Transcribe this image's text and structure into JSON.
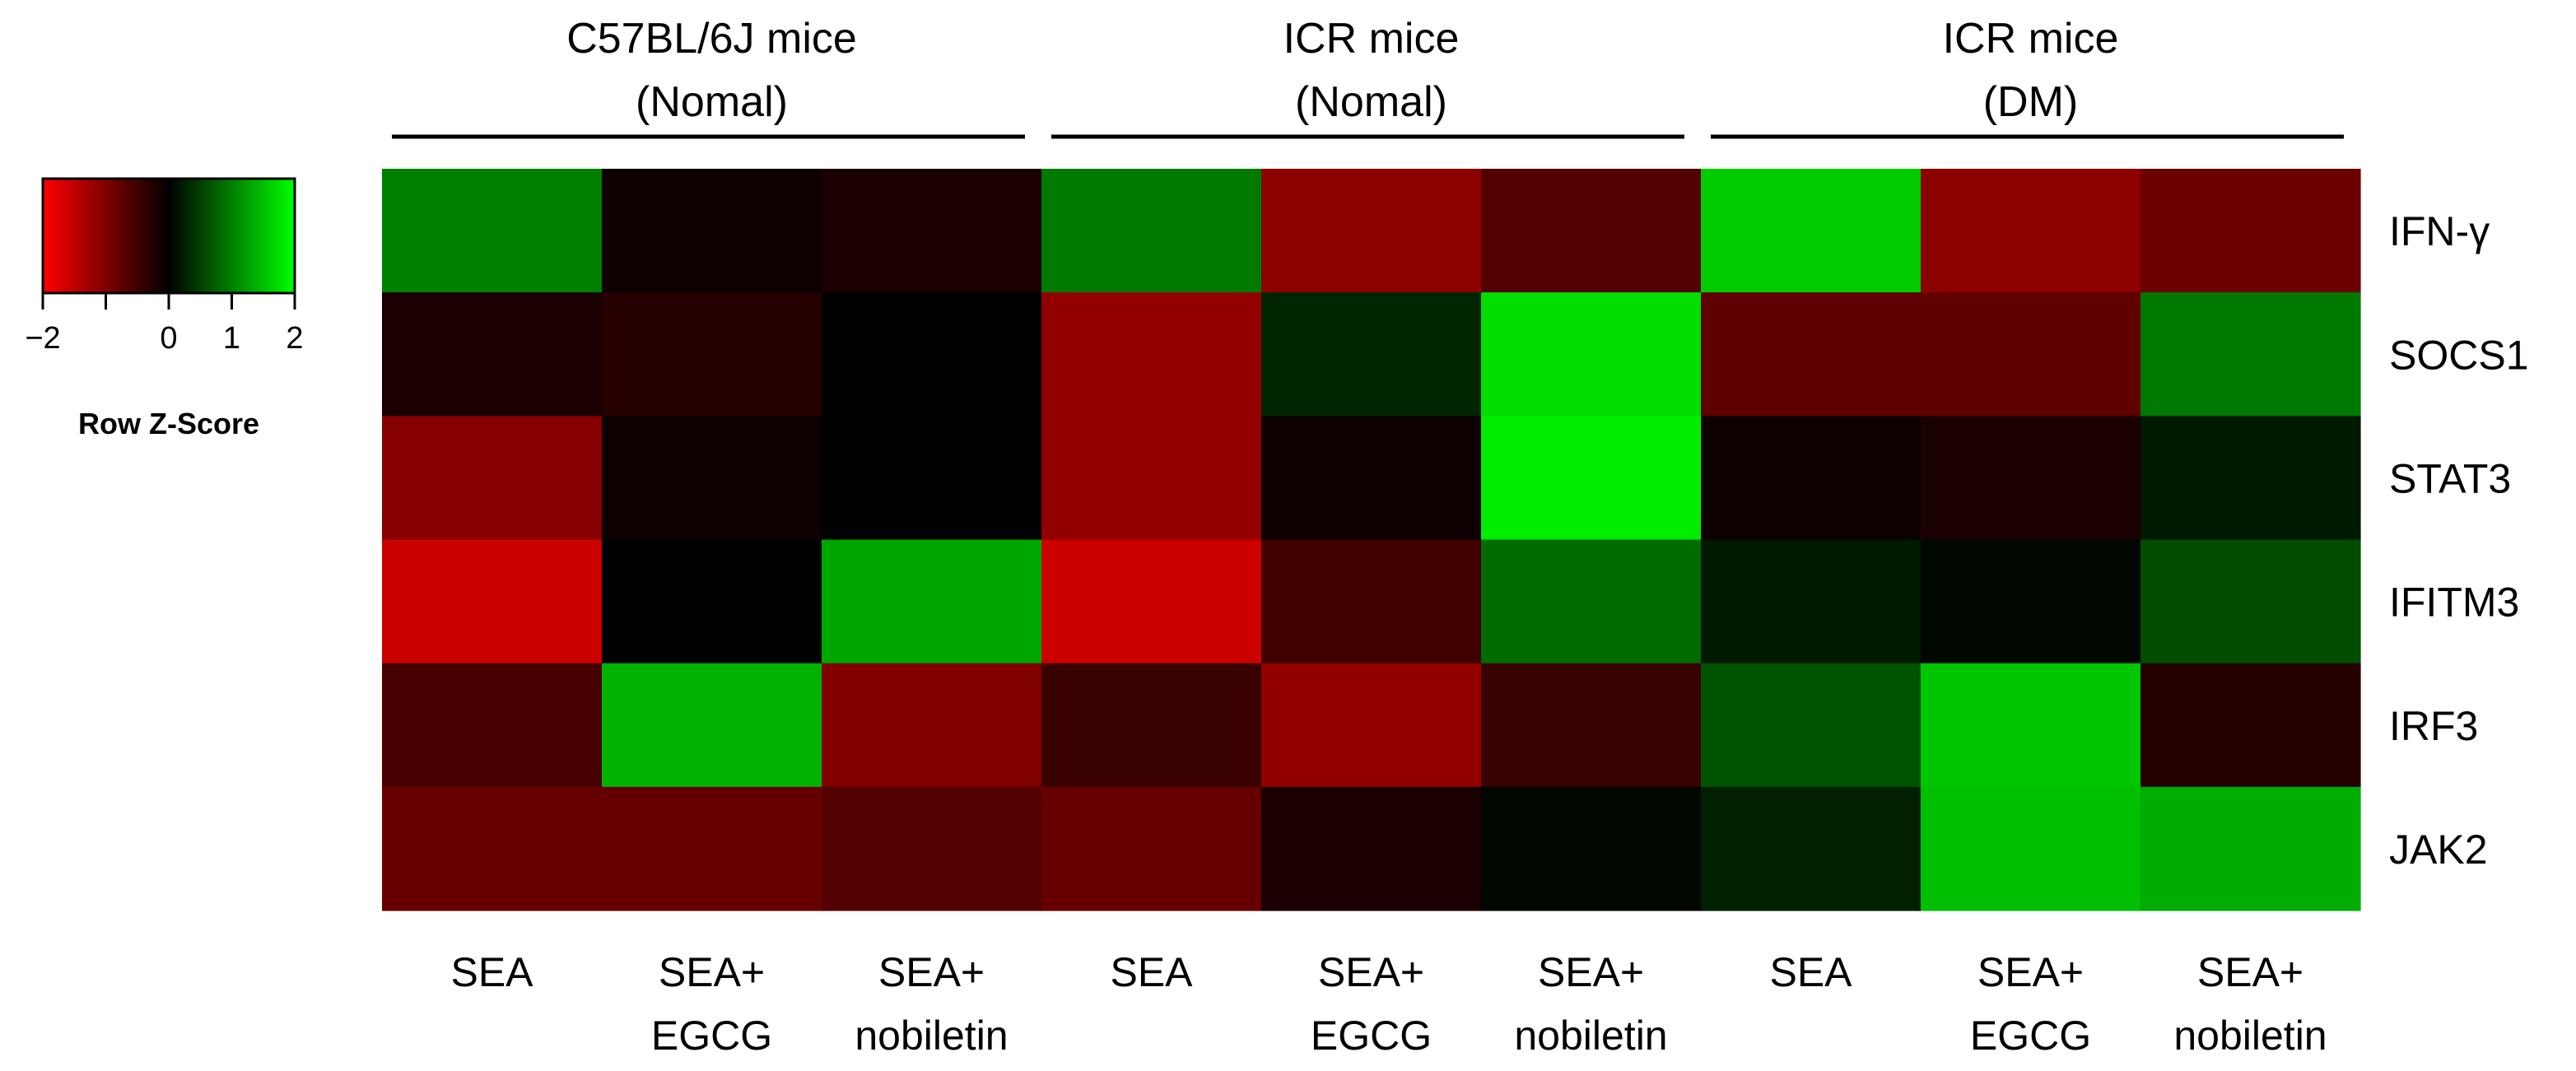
{
  "chart_data": {
    "type": "heatmap",
    "title": "",
    "groups": [
      {
        "line1": "C57BL/6J mice",
        "line2": "(Nomal)"
      },
      {
        "line1": "ICR mice",
        "line2": "(Nomal)"
      },
      {
        "line1": "ICR mice",
        "line2": "(DM)"
      }
    ],
    "columns": [
      {
        "line1": "SEA",
        "line2": ""
      },
      {
        "line1": "SEA+",
        "line2": "EGCG"
      },
      {
        "line1": "SEA+",
        "line2": "nobiletin"
      },
      {
        "line1": "SEA",
        "line2": ""
      },
      {
        "line1": "SEA+",
        "line2": "EGCG"
      },
      {
        "line1": "SEA+",
        "line2": "nobiletin"
      },
      {
        "line1": "SEA",
        "line2": ""
      },
      {
        "line1": "SEA+",
        "line2": "EGCG"
      },
      {
        "line1": "SEA+",
        "line2": "nobiletin"
      }
    ],
    "rows": [
      "IFN-γ",
      "SOCS1",
      "STAT3",
      "IFITM3",
      "IRF3",
      "JAK2"
    ],
    "values": [
      [
        1.0,
        -0.1,
        -0.2,
        0.95,
        -1.1,
        -0.65,
        1.6,
        -1.1,
        -0.85
      ],
      [
        -0.2,
        -0.3,
        0.0,
        -1.15,
        0.3,
        1.75,
        -0.75,
        -0.75,
        0.95
      ],
      [
        -1.05,
        -0.1,
        0.0,
        -1.15,
        -0.1,
        1.85,
        -0.1,
        -0.2,
        0.2
      ],
      [
        -1.6,
        0.0,
        1.3,
        -1.6,
        -0.5,
        0.85,
        0.2,
        0.05,
        0.6
      ],
      [
        -0.55,
        1.4,
        -1.0,
        -0.45,
        -1.15,
        -0.45,
        0.65,
        1.55,
        -0.3
      ],
      [
        -0.8,
        -0.8,
        -0.65,
        -0.8,
        -0.2,
        0.05,
        0.25,
        1.5,
        1.35
      ]
    ],
    "colorscale": {
      "min": -2,
      "max": 2,
      "low": "#ff0000",
      "mid": "#000000",
      "high": "#00ff00"
    },
    "legend": {
      "title": "Row Z-Score",
      "tick_labels": [
        "−2",
        "0",
        "1",
        "2"
      ],
      "tick_values": [
        -2,
        0,
        1,
        2
      ],
      "position": "top-left"
    }
  }
}
